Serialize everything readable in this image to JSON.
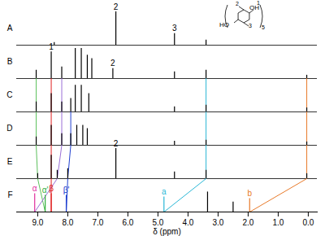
{
  "chart_data": {
    "type": "nmr_stack",
    "x_label": "δ (ppm)",
    "xlim": [
      9.7,
      -0.3
    ],
    "xticks": [
      {
        "value": 9,
        "label": "9.0"
      },
      {
        "value": 8,
        "label": "8.0"
      },
      {
        "value": 7,
        "label": "7.0"
      },
      {
        "value": 6,
        "label": "6.0"
      },
      {
        "value": 5,
        "label": "5.0"
      },
      {
        "value": 4,
        "label": "4.0"
      },
      {
        "value": 3,
        "label": "3.0"
      },
      {
        "value": 2,
        "label": "2.0"
      },
      {
        "value": 1,
        "label": "1.0"
      },
      {
        "value": 0,
        "label": "0.0"
      }
    ],
    "ylim": [
      0,
      1
    ],
    "tick_labels": "x",
    "spectra": [
      {
        "name": "A",
        "peaks": [
          {
            "ppm": 8.45,
            "height": 0.08
          },
          {
            "ppm": 6.4,
            "height": 1.0,
            "label": "2"
          },
          {
            "ppm": 4.45,
            "height": 0.35,
            "label": "3"
          },
          {
            "ppm": 3.4,
            "height": 0.15
          }
        ]
      },
      {
        "name": "B",
        "peaks": [
          {
            "ppm": 9.05,
            "height": 0.25
          },
          {
            "ppm": 8.55,
            "height": 0.8,
            "label": "1"
          },
          {
            "ppm": 8.2,
            "height": 0.35
          },
          {
            "ppm": 7.75,
            "height": 0.9
          },
          {
            "ppm": 7.55,
            "height": 0.9
          },
          {
            "ppm": 7.35,
            "height": 0.7
          },
          {
            "ppm": 7.2,
            "height": 0.6
          },
          {
            "ppm": 6.5,
            "height": 0.3,
            "label": "2"
          },
          {
            "ppm": 4.45,
            "height": 0.2
          },
          {
            "ppm": 3.4,
            "height": 0.25
          },
          {
            "ppm": 0.05,
            "height": 0.1
          }
        ]
      },
      {
        "name": "C",
        "peaks": [
          {
            "ppm": 9.05,
            "height": 0.3
          },
          {
            "ppm": 8.55,
            "height": 0.55
          },
          {
            "ppm": 8.2,
            "height": 0.3
          },
          {
            "ppm": 7.9,
            "height": 0.4
          },
          {
            "ppm": 7.75,
            "height": 0.8
          },
          {
            "ppm": 7.55,
            "height": 0.8
          },
          {
            "ppm": 7.3,
            "height": 0.55
          },
          {
            "ppm": 4.45,
            "height": 0.15
          },
          {
            "ppm": 3.4,
            "height": 0.2
          },
          {
            "ppm": 0.05,
            "height": 0.12
          }
        ]
      },
      {
        "name": "D",
        "peaks": [
          {
            "ppm": 9.05,
            "height": 0.25
          },
          {
            "ppm": 8.55,
            "height": 0.6
          },
          {
            "ppm": 8.2,
            "height": 0.35
          },
          {
            "ppm": 7.9,
            "height": 0.35
          },
          {
            "ppm": 7.7,
            "height": 0.6
          },
          {
            "ppm": 7.5,
            "height": 0.6
          },
          {
            "ppm": 7.35,
            "height": 0.5
          },
          {
            "ppm": 4.45,
            "height": 0.12
          },
          {
            "ppm": 3.4,
            "height": 0.15
          },
          {
            "ppm": 0.05,
            "height": 0.1
          }
        ]
      },
      {
        "name": "E",
        "peaks": [
          {
            "ppm": 9.0,
            "height": 0.15
          },
          {
            "ppm": 8.55,
            "height": 0.7
          },
          {
            "ppm": 8.35,
            "height": 0.25
          },
          {
            "ppm": 8.0,
            "height": 0.3
          },
          {
            "ppm": 6.4,
            "height": 0.9,
            "label": "2"
          },
          {
            "ppm": 4.45,
            "height": 0.2
          },
          {
            "ppm": 3.4,
            "height": 0.25
          },
          {
            "ppm": 0.05,
            "height": 0.15
          }
        ]
      },
      {
        "name": "F",
        "peaks": [
          {
            "ppm": 9.1,
            "height": 0.55,
            "label": "α",
            "color": "#e0309e"
          },
          {
            "ppm": 8.75,
            "height": 0.5,
            "label": "α'",
            "color": "#2fae3a"
          },
          {
            "ppm": 8.55,
            "height": 0.55,
            "label": "β",
            "color": "#e02020"
          },
          {
            "ppm": 8.05,
            "height": 0.5,
            "label": "β'",
            "color": "#2040d0"
          },
          {
            "ppm": 4.8,
            "height": 0.45,
            "label": "a",
            "color": "#2ab7d6"
          },
          {
            "ppm": 3.35,
            "height": 0.6
          },
          {
            "ppm": 2.5,
            "height": 0.3
          },
          {
            "ppm": 1.95,
            "height": 0.4,
            "label": "b",
            "color": "#e87a2a"
          }
        ]
      }
    ],
    "tracks": [
      {
        "color": "#5cc05c",
        "spectra": [
          "B",
          "C",
          "D",
          "E",
          "F"
        ],
        "ppm": [
          9.05,
          9.05,
          9.05,
          9.0,
          8.75
        ]
      },
      {
        "color": "#9b6fd6",
        "spectra": [
          "B",
          "C",
          "D",
          "E",
          "F"
        ],
        "ppm": [
          8.2,
          8.2,
          8.2,
          8.35,
          9.1
        ]
      },
      {
        "color": "#e02020",
        "spectra": [
          "B",
          "C",
          "D",
          "E",
          "F"
        ],
        "ppm": [
          8.55,
          8.55,
          8.55,
          8.55,
          8.55
        ]
      },
      {
        "color": "#2040d0",
        "spectra": [
          "C",
          "D",
          "E",
          "F"
        ],
        "ppm": [
          7.9,
          7.9,
          8.0,
          8.05
        ]
      },
      {
        "color": "#2ab7d6",
        "spectra": [
          "B",
          "C",
          "D",
          "E",
          "F"
        ],
        "ppm": [
          3.4,
          3.4,
          3.4,
          3.4,
          4.8
        ]
      },
      {
        "color": "#e87a2a",
        "spectra": [
          "B",
          "C",
          "D",
          "E",
          "F"
        ],
        "ppm": [
          0.05,
          0.05,
          0.05,
          0.05,
          1.95
        ]
      }
    ],
    "structure_labels": [
      "1",
      "2",
      "3",
      "HO",
      "OH",
      "5"
    ]
  }
}
